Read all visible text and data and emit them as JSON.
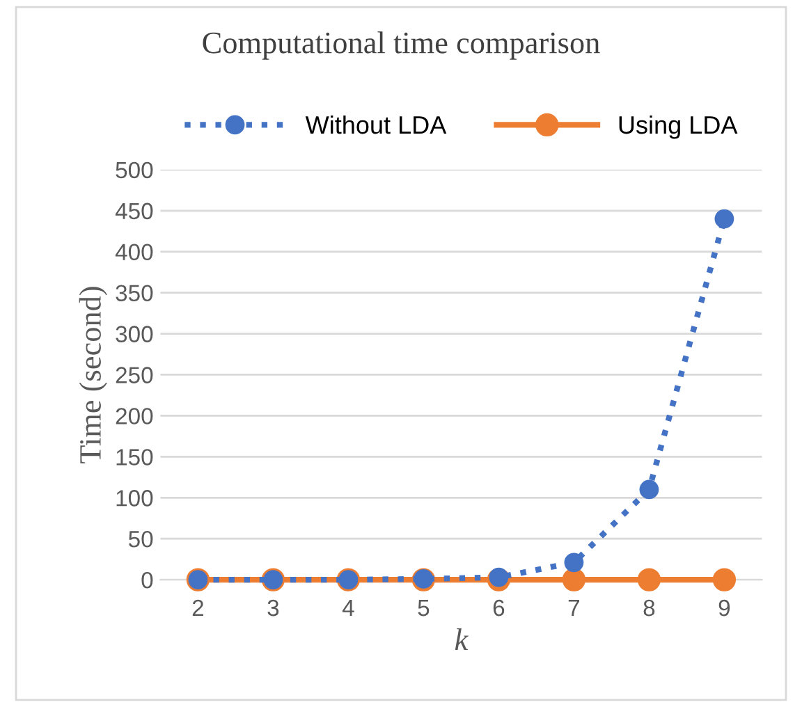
{
  "chart_data": {
    "type": "line",
    "title": "Computational time comparison",
    "xlabel": "k",
    "ylabel": "Time (second)",
    "categories": [
      "2",
      "3",
      "4",
      "5",
      "6",
      "7",
      "8",
      "9"
    ],
    "series": [
      {
        "name": "Without LDA",
        "color": "#4472c4",
        "line_style": "dotted",
        "values": [
          0,
          0,
          0,
          1,
          3,
          21,
          110,
          440
        ]
      },
      {
        "name": "Using LDA",
        "color": "#ed7d31",
        "line_style": "solid",
        "values": [
          0,
          0,
          0,
          0,
          0,
          0,
          0,
          0
        ]
      }
    ],
    "ylim": [
      0,
      500
    ],
    "yticks": [
      0,
      50,
      100,
      150,
      200,
      250,
      300,
      350,
      400,
      450,
      500
    ],
    "grid": "y",
    "legend": "top",
    "marker": "circle"
  }
}
